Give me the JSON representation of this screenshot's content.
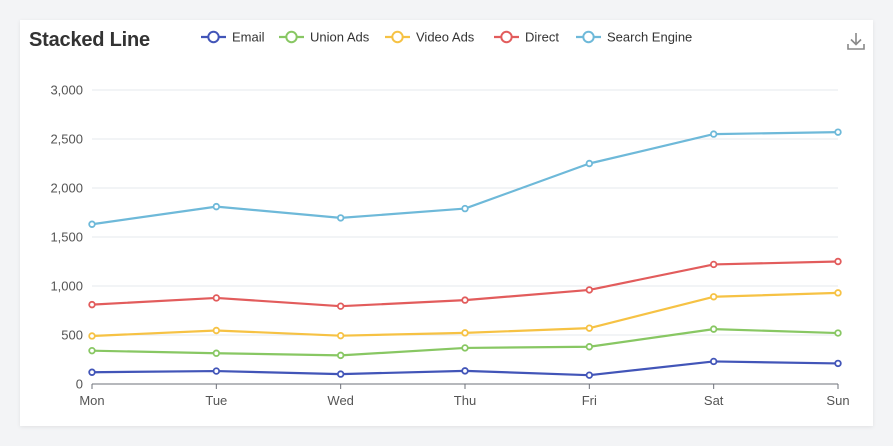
{
  "chart_data": {
    "type": "line",
    "title": "Stacked Line",
    "stacked": true,
    "categories": [
      "Mon",
      "Tue",
      "Wed",
      "Thu",
      "Fri",
      "Sat",
      "Sun"
    ],
    "ylim": [
      0,
      3000
    ],
    "yticks": [
      0,
      500,
      1000,
      1500,
      2000,
      2500,
      3000
    ],
    "ytick_labels": [
      "0",
      "500",
      "1,000",
      "1,500",
      "2,000",
      "2,500",
      "3,000"
    ],
    "grid": true,
    "legend_position": "top",
    "series": [
      {
        "name": "Email",
        "color": "#4255b8",
        "values": [
          120,
          132,
          101,
          134,
          90,
          230,
          210
        ]
      },
      {
        "name": "Union Ads",
        "color": "#88c763",
        "values": [
          220,
          182,
          191,
          234,
          290,
          330,
          310
        ]
      },
      {
        "name": "Video Ads",
        "color": "#f6c244",
        "values": [
          150,
          232,
          201,
          154,
          190,
          330,
          410
        ]
      },
      {
        "name": "Direct",
        "color": "#e25c5c",
        "values": [
          320,
          332,
          301,
          334,
          390,
          330,
          320
        ]
      },
      {
        "name": "Search Engine",
        "color": "#6eb9d9",
        "values": [
          820,
          932,
          901,
          934,
          1290,
          1330,
          1320
        ]
      }
    ]
  },
  "toolbar": {
    "download_icon": "download-icon"
  }
}
